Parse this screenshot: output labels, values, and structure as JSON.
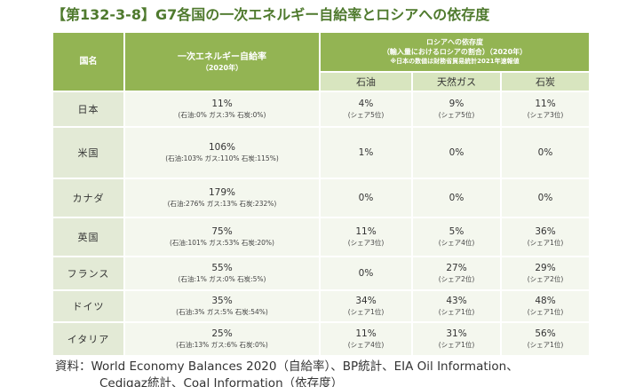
{
  "title": "【第132-3-8】G7各国の一次エネルギー自給率とロシアへの依存度",
  "headers": {
    "country": "国名",
    "self_sufficiency": "一次エネルギー自給率",
    "self_sufficiency_year": "（2020年）",
    "dependence": "ロシアへの依存度",
    "dependence_sub": "（輸入量におけるロシアの割合）（2020年）",
    "dependence_note": "※日本の数値は財務省貿易統計2021年速報値",
    "oil": "石油",
    "gas": "天然ガス",
    "coal": "石炭"
  },
  "rows": [
    {
      "country": "日本",
      "self": "11%",
      "self_detail": "(石油:0% ガス:3% 石炭:0%)",
      "oil": "4%",
      "oil_rank": "(シェア5位)",
      "gas": "9%",
      "gas_rank": "(シェア5位)",
      "coal": "11%",
      "coal_rank": "(シェア3位)"
    },
    {
      "country": "米国",
      "self": "106%",
      "self_detail": "(石油:103% ガス:110% 石炭:115%)",
      "oil": "1%",
      "oil_rank": "",
      "gas": "0%",
      "gas_rank": "",
      "coal": "0%",
      "coal_rank": ""
    },
    {
      "country": "カナダ",
      "self": "179%",
      "self_detail": "(石油:276% ガス:13% 石炭:232%)",
      "oil": "0%",
      "oil_rank": "",
      "gas": "0%",
      "gas_rank": "",
      "coal": "0%",
      "coal_rank": ""
    },
    {
      "country": "英国",
      "self": "75%",
      "self_detail": "(石油:101% ガス:53% 石炭:20%)",
      "oil": "11%",
      "oil_rank": "(シェア3位)",
      "gas": "5%",
      "gas_rank": "(シェア4位)",
      "coal": "36%",
      "coal_rank": "(シェア1位)"
    },
    {
      "country": "フランス",
      "self": "55%",
      "self_detail": "(石油:1% ガス:0% 石炭:5%)",
      "oil": "0%",
      "oil_rank": "",
      "gas": "27%",
      "gas_rank": "(シェア2位)",
      "coal": "29%",
      "coal_rank": "(シェア2位)"
    },
    {
      "country": "ドイツ",
      "self": "35%",
      "self_detail": "(石油:3% ガス:5% 石炭:54%)",
      "oil": "34%",
      "oil_rank": "(シェア1位)",
      "gas": "43%",
      "gas_rank": "(シェア1位)",
      "coal": "48%",
      "coal_rank": "(シェア1位)"
    },
    {
      "country": "イタリア",
      "self": "25%",
      "self_detail": "(石油:13% ガス:6% 石炭:0%)",
      "oil": "11%",
      "oil_rank": "(シェア4位)",
      "gas": "31%",
      "gas_rank": "(シェア1位)",
      "coal": "56%",
      "coal_rank": "(シェア1位)"
    }
  ],
  "footer": {
    "line1": "資料：World Economy Balances 2020（自給率）、BP統計、EIA Oil Information、",
    "line2": "Cedigaz統計、Coal Information（依存度）"
  },
  "colors": {
    "title": "#4f7a2e",
    "header_bg": "#93b453",
    "subheader_bg": "#d8e5bf",
    "country_bg": "#e3ead6",
    "cell_bg": "#f4f7ee"
  }
}
